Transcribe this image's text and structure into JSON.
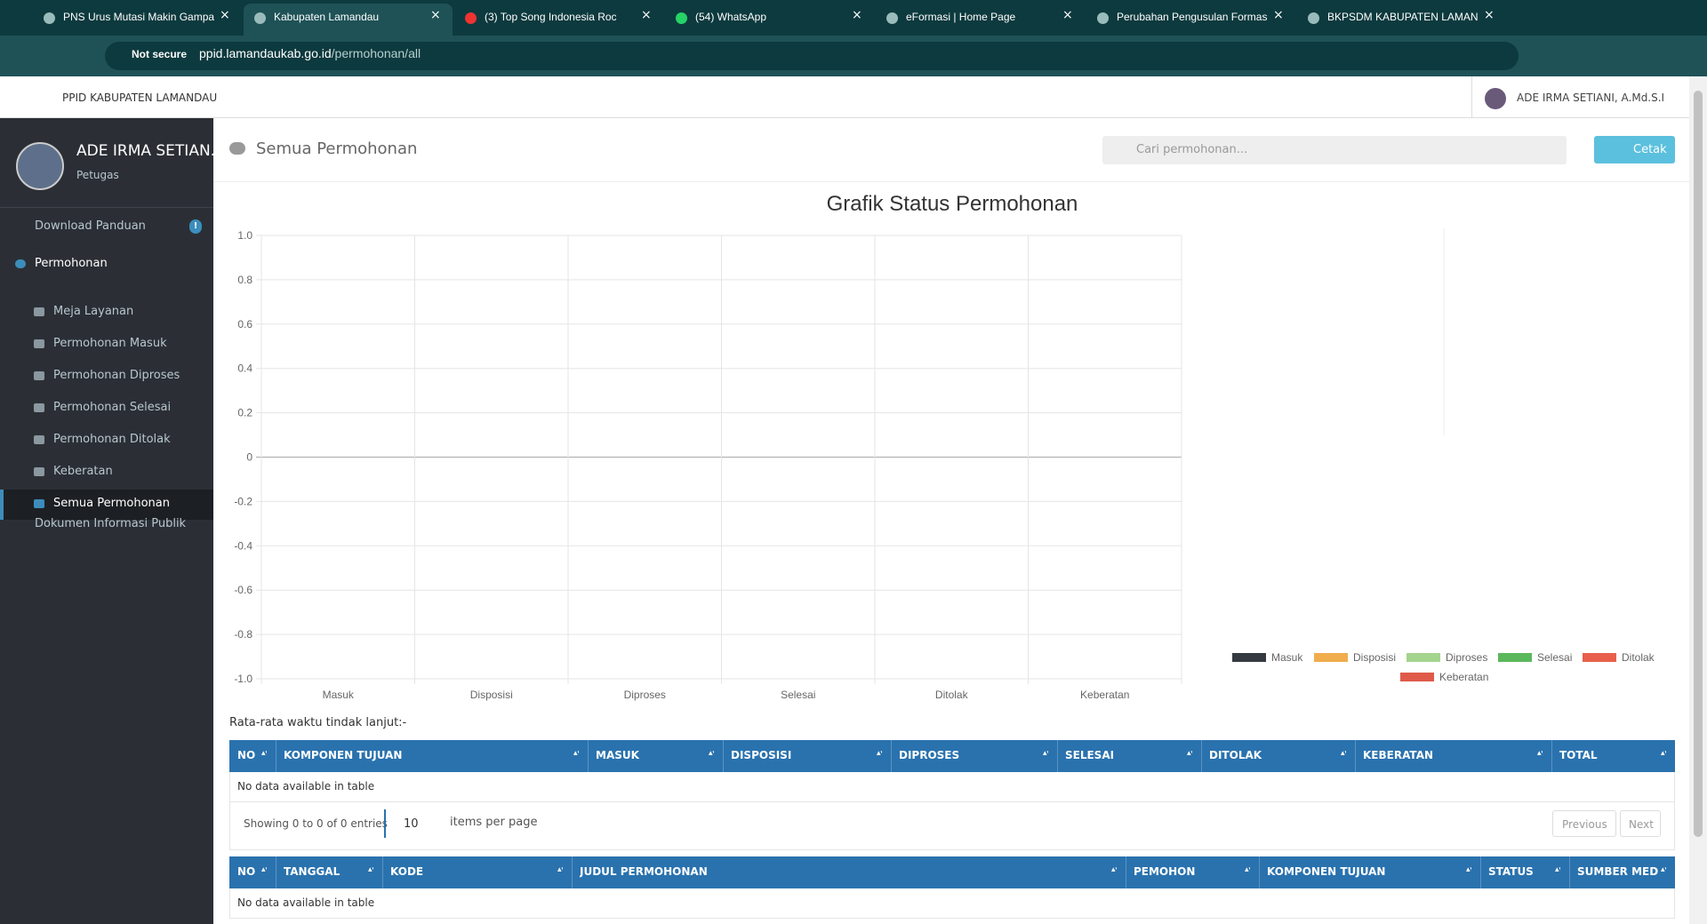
{
  "browser": {
    "tabs": [
      "PNS Urus Mutasi Makin Gampa",
      "Kabupaten Lamandau",
      "(3) Top Song Indonesia Roc",
      "(54) WhatsApp",
      "eFormasi | Home Page",
      "Perubahan Pengusulan Formasi",
      "BKPSDM KABUPATEN LAMAND"
    ],
    "url_security": "Not secure",
    "url_host": "ppid.lamandaukab.go.id",
    "url_path": "/permohonan/all"
  },
  "header": {
    "brand": "PPID KABUPATEN LAMANDAU",
    "user": "ADE IRMA SETIANI, A.Md.S.I"
  },
  "sidebar": {
    "user_name": "ADE IRMA SETIAN...",
    "user_role": "Petugas",
    "download": "Download Panduan",
    "download_badge": "!",
    "group": "Permohonan",
    "submenu": [
      "Meja Layanan",
      "Permohonan Masuk",
      "Permohonan Diproses",
      "Permohonan Selesai",
      "Permohonan Ditolak",
      "Keberatan",
      "Semua Permohonan"
    ],
    "documents": "Dokumen Informasi Publik"
  },
  "page": {
    "title": "Semua Permohonan",
    "search_placeholder": "Cari permohonan...",
    "print_button": "Cetak"
  },
  "chart_data": {
    "type": "bar",
    "title": "Grafik Status Permohonan",
    "categories": [
      "Masuk",
      "Disposisi",
      "Diproses",
      "Selesai",
      "Ditolak",
      "Keberatan"
    ],
    "series": [
      {
        "name": "Masuk",
        "color": "#343a40",
        "values": [
          null,
          null,
          null,
          null,
          null,
          null
        ]
      },
      {
        "name": "Disposisi",
        "color": "#f0ad4e",
        "values": [
          null,
          null,
          null,
          null,
          null,
          null
        ]
      },
      {
        "name": "Diproses",
        "color": "#a5d48e",
        "values": [
          null,
          null,
          null,
          null,
          null,
          null
        ]
      },
      {
        "name": "Selesai",
        "color": "#5cb85c",
        "values": [
          null,
          null,
          null,
          null,
          null,
          null
        ]
      },
      {
        "name": "Ditolak",
        "color": "#e8604c",
        "values": [
          null,
          null,
          null,
          null,
          null,
          null
        ]
      },
      {
        "name": "Keberatan",
        "color": "#e05a4a",
        "values": [
          null,
          null,
          null,
          null,
          null,
          null
        ]
      }
    ],
    "ylim": [
      -1,
      1
    ],
    "yticks": [
      {
        "value": 1,
        "label": "1.0"
      },
      0.8,
      0.6,
      0.4,
      0.2,
      0,
      -0.2,
      -0.4,
      -0.6,
      -0.8,
      {
        "value": -1,
        "label": "-1.0"
      }
    ],
    "grid": true
  },
  "average_label": "Rata-rata waktu tindak lanjut:-",
  "summary_table": {
    "columns": [
      "NO",
      "KOMPONEN TUJUAN",
      "MASUK",
      "DISPOSISI",
      "DIPROSES",
      "SELESAI",
      "DITOLAK",
      "KEBERATAN",
      "TOTAL"
    ],
    "empty": "No data available in table",
    "info": "Showing 0 to 0 of 0 entries",
    "page_size": 10,
    "page_size_suffix": "items per page",
    "previous": "Previous",
    "next": "Next"
  },
  "requests_table": {
    "columns": [
      "NO",
      "TANGGAL",
      "KODE",
      "JUDUL PERMOHONAN",
      "PEMOHON",
      "KOMPONEN TUJUAN",
      "STATUS",
      "SUMBER MEDIA"
    ],
    "empty": "No data available in table"
  }
}
